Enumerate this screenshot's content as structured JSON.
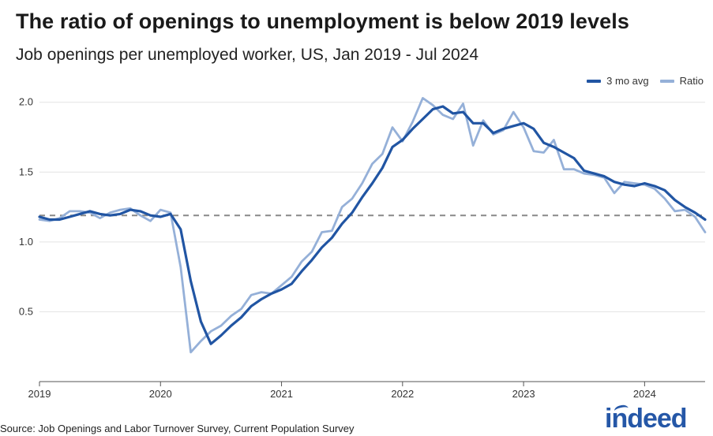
{
  "title": "The ratio of openings to unemployment is below 2019 levels",
  "subtitle": "Job openings per unemployed worker, US, Jan 2019 - Jul 2024",
  "source": "Source: Job Openings and Labor Turnover Survey, Current Population Survey",
  "logo_text": "indeed",
  "colors": {
    "avg": "#2155a3",
    "ratio": "#95b0d8",
    "reference": "#888888"
  },
  "chart_data": {
    "type": "line",
    "title": "The ratio of openings to unemployment is below 2019 levels",
    "subtitle": "Job openings per unemployed worker, US, Jan 2019 - Jul 2024",
    "xlabel": "",
    "ylabel": "",
    "x_start": "2019-01",
    "x_end": "2024-07",
    "ylim": [
      0.0,
      2.1
    ],
    "y_ticks": [
      0.5,
      1.0,
      1.5,
      2.0
    ],
    "y_tick_labels": [
      "0.5",
      "1.0",
      "1.5",
      "2.0"
    ],
    "x_ticks": [
      "2019",
      "2020",
      "2021",
      "2022",
      "2023",
      "2024"
    ],
    "grid": "horizontal",
    "legend_position": "top-right",
    "reference_line": {
      "value": 1.19,
      "style": "dashed"
    },
    "series": [
      {
        "name": "3 mo avg",
        "color": "#2155a3",
        "values": [
          1.18,
          1.16,
          1.16,
          1.18,
          1.2,
          1.22,
          1.2,
          1.19,
          1.2,
          1.23,
          1.22,
          1.19,
          1.18,
          1.2,
          1.09,
          0.72,
          0.43,
          0.27,
          0.33,
          0.4,
          0.46,
          0.54,
          0.59,
          0.63,
          0.66,
          0.7,
          0.79,
          0.87,
          0.96,
          1.03,
          1.13,
          1.21,
          1.32,
          1.42,
          1.53,
          1.68,
          1.73,
          1.81,
          1.88,
          1.95,
          1.97,
          1.92,
          1.93,
          1.85,
          1.85,
          1.78,
          1.81,
          1.83,
          1.85,
          1.81,
          1.71,
          1.68,
          1.64,
          1.6,
          1.51,
          1.49,
          1.47,
          1.43,
          1.41,
          1.4,
          1.42,
          1.4,
          1.37,
          1.3,
          1.25,
          1.21,
          1.16
        ]
      },
      {
        "name": "Ratio",
        "color": "#95b0d8",
        "values": [
          1.16,
          1.15,
          1.17,
          1.22,
          1.22,
          1.21,
          1.17,
          1.21,
          1.23,
          1.24,
          1.19,
          1.15,
          1.23,
          1.21,
          0.82,
          0.21,
          0.29,
          0.36,
          0.4,
          0.47,
          0.52,
          0.62,
          0.64,
          0.63,
          0.69,
          0.75,
          0.86,
          0.93,
          1.07,
          1.08,
          1.25,
          1.31,
          1.42,
          1.56,
          1.63,
          1.82,
          1.72,
          1.86,
          2.03,
          1.98,
          1.91,
          1.88,
          1.99,
          1.69,
          1.87,
          1.77,
          1.8,
          1.93,
          1.82,
          1.65,
          1.64,
          1.73,
          1.52,
          1.52,
          1.49,
          1.48,
          1.46,
          1.35,
          1.43,
          1.42,
          1.41,
          1.38,
          1.31,
          1.22,
          1.23,
          1.18,
          1.07
        ]
      }
    ]
  }
}
